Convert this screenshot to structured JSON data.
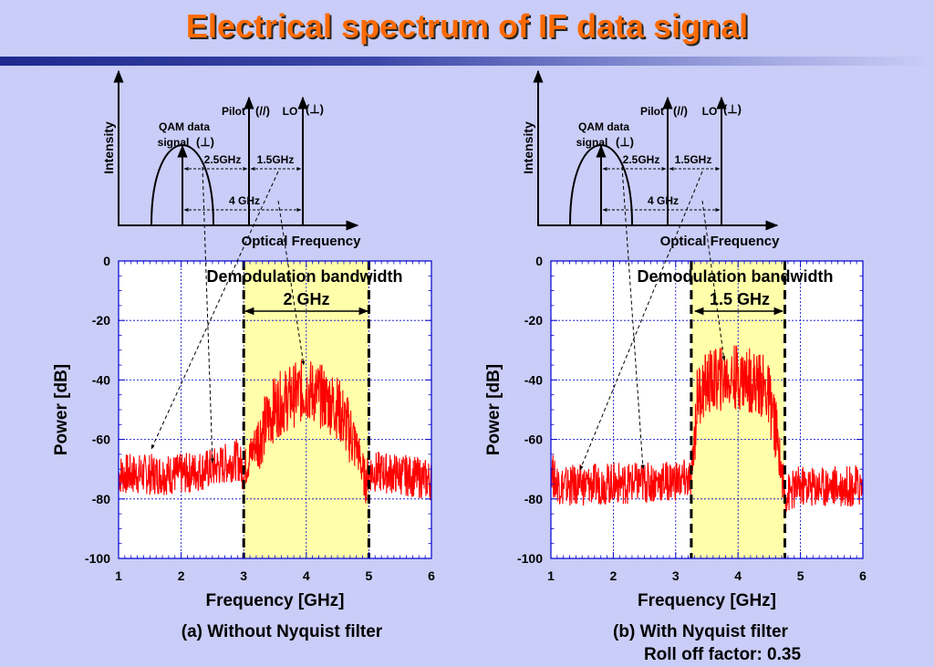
{
  "title": "Electrical spectrum of IF data signal",
  "colors": {
    "title": "#ff6a00",
    "trace": "#ff0000",
    "band": "#ffffaa",
    "grid": "#0000cc"
  },
  "panels": [
    {
      "diagram": {
        "ylabel": "Intensity",
        "xlabel": "Optical Frequency",
        "qam_label_1": "QAM data",
        "qam_label_2": "signal",
        "qam_pol": "(⊥)",
        "pilot_label": "Pilot",
        "pilot_pol": "(//)",
        "lo_label": "LO",
        "lo_pol": "(⊥)",
        "gap1": "2.5GHz",
        "gap2": "1.5GHz",
        "gap_total": "4 GHz"
      },
      "demod_label": "Demodulation bandwidth",
      "demod_value": "2 GHz",
      "caption_1": "(a) Without Nyquist filter",
      "caption_2": ""
    },
    {
      "diagram": {
        "ylabel": "Intensity",
        "xlabel": "Optical Frequency",
        "qam_label_1": "QAM data",
        "qam_label_2": "signal",
        "qam_pol": "(⊥)",
        "pilot_label": "Pilot",
        "pilot_pol": "(//)",
        "lo_label": "LO",
        "lo_pol": "(⊥)",
        "gap1": "2.5GHz",
        "gap2": "1.5GHz",
        "gap_total": "4 GHz"
      },
      "demod_label": "Demodulation bandwidth",
      "demod_value": "1.5 GHz",
      "caption_1": "(b) With Nyquist filter",
      "caption_2": "Roll off factor: 0.35"
    }
  ],
  "chart_data": [
    {
      "type": "line",
      "xlabel": "Frequency [GHz]",
      "ylabel": "Power [dB]",
      "xlim": [
        1,
        6
      ],
      "ylim": [
        -100,
        0
      ],
      "xticks": [
        1,
        2,
        3,
        4,
        5,
        6
      ],
      "yticks": [
        0,
        -20,
        -40,
        -60,
        -80,
        -100
      ],
      "grid": true,
      "band": [
        3,
        5
      ],
      "series": [
        {
          "x": [
            1.0,
            1.5,
            2.0,
            2.5,
            2.9,
            3.0,
            3.2,
            3.5,
            3.8,
            4.0,
            4.2,
            4.5,
            4.8,
            4.95,
            5.0,
            5.5,
            6.0
          ],
          "y": [
            -71,
            -71,
            -71,
            -69,
            -66,
            -70,
            -60,
            -48,
            -44,
            -42,
            -44,
            -48,
            -61,
            -74,
            -70,
            -71,
            -73
          ]
        }
      ]
    },
    {
      "type": "line",
      "xlabel": "Frequency [GHz]",
      "ylabel": "Power [dB]",
      "xlim": [
        1,
        6
      ],
      "ylim": [
        -100,
        0
      ],
      "xticks": [
        1,
        2,
        3,
        4,
        5,
        6
      ],
      "yticks": [
        0,
        -20,
        -40,
        -60,
        -80,
        -100
      ],
      "grid": true,
      "band": [
        3.25,
        4.75
      ],
      "series": [
        {
          "x": [
            1.0,
            1.05,
            1.2,
            2.0,
            2.5,
            3.0,
            3.25,
            3.35,
            3.5,
            3.8,
            4.0,
            4.2,
            4.4,
            4.5,
            4.6,
            4.75,
            5.0,
            6.0
          ],
          "y": [
            -67,
            -73,
            -75,
            -74,
            -74,
            -73,
            -73,
            -44,
            -40,
            -38,
            -38,
            -39,
            -41,
            -45,
            -55,
            -78,
            -75,
            -75
          ]
        }
      ]
    }
  ]
}
